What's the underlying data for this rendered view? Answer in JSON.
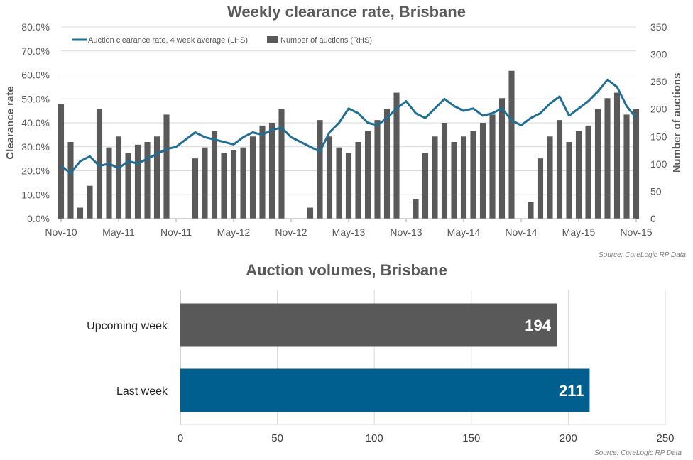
{
  "chart_data": [
    {
      "type": "line",
      "title": "Weekly clearance rate, Brisbane",
      "ylabel_left": "Clearance rate",
      "ylabel_right": "Number of auctions",
      "ylim_left": [
        0,
        80
      ],
      "ylim_right": [
        0,
        350
      ],
      "y_ticks_left": [
        "0.0%",
        "10.0%",
        "20.0%",
        "30.0%",
        "40.0%",
        "50.0%",
        "60.0%",
        "70.0%",
        "80.0%"
      ],
      "y_ticks_right": [
        "0",
        "50",
        "100",
        "150",
        "200",
        "250",
        "300",
        "350"
      ],
      "x_ticks": [
        "Nov-10",
        "May-11",
        "Nov-11",
        "May-12",
        "Nov-12",
        "May-13",
        "Nov-13",
        "May-14",
        "Nov-14",
        "May-15",
        "Nov-15"
      ],
      "grid": true,
      "legend_position": "top-left",
      "legend": [
        "Auction clearance rate, 4 week average (LHS)",
        "Number of auctions (RHS)"
      ],
      "source": "Source: CoreLogic  RP Data",
      "series": [
        {
          "name": "Auction clearance rate, 4 week average (LHS)",
          "axis": "left",
          "color": "#1f6e96",
          "x": [
            "Nov-10",
            "Dec-10",
            "Jan-11",
            "Feb-11",
            "Mar-11",
            "Apr-11",
            "May-11",
            "Jun-11",
            "Jul-11",
            "Aug-11",
            "Sep-11",
            "Oct-11",
            "Nov-11",
            "Dec-11",
            "Jan-12",
            "Feb-12",
            "Mar-12",
            "Apr-12",
            "May-12",
            "Jun-12",
            "Jul-12",
            "Aug-12",
            "Sep-12",
            "Oct-12",
            "Nov-12",
            "Dec-12",
            "Jan-13",
            "Feb-13",
            "Mar-13",
            "Apr-13",
            "May-13",
            "Jun-13",
            "Jul-13",
            "Aug-13",
            "Sep-13",
            "Oct-13",
            "Nov-13",
            "Dec-13",
            "Jan-14",
            "Feb-14",
            "Mar-14",
            "Apr-14",
            "May-14",
            "Jun-14",
            "Jul-14",
            "Aug-14",
            "Sep-14",
            "Oct-14",
            "Nov-14",
            "Dec-14",
            "Jan-15",
            "Feb-15",
            "Mar-15",
            "Apr-15",
            "May-15",
            "Jun-15",
            "Jul-15",
            "Aug-15",
            "Sep-15",
            "Oct-15",
            "Nov-15"
          ],
          "values": [
            22,
            19,
            24,
            26,
            22,
            23,
            21,
            24,
            23,
            25,
            27,
            29,
            30,
            33,
            36,
            34,
            33,
            32,
            31,
            34,
            36,
            35,
            37,
            38,
            34,
            32,
            30,
            28,
            36,
            40,
            46,
            44,
            40,
            39,
            42,
            46,
            49,
            44,
            42,
            46,
            50,
            47,
            45,
            46,
            43,
            44,
            46,
            41,
            39,
            42,
            44,
            48,
            51,
            43,
            46,
            49,
            53,
            58,
            55,
            47,
            42
          ]
        },
        {
          "name": "Number of auctions (RHS)",
          "axis": "right",
          "color": "#595959",
          "x": [
            "Nov-10",
            "Dec-10",
            "Jan-11",
            "Feb-11",
            "Mar-11",
            "Apr-11",
            "May-11",
            "Jun-11",
            "Jul-11",
            "Aug-11",
            "Sep-11",
            "Oct-11",
            "Nov-11",
            "Dec-11",
            "Jan-12",
            "Feb-12",
            "Mar-12",
            "Apr-12",
            "May-12",
            "Jun-12",
            "Jul-12",
            "Aug-12",
            "Sep-12",
            "Oct-12",
            "Nov-12",
            "Dec-12",
            "Jan-13",
            "Feb-13",
            "Mar-13",
            "Apr-13",
            "May-13",
            "Jun-13",
            "Jul-13",
            "Aug-13",
            "Sep-13",
            "Oct-13",
            "Nov-13",
            "Dec-13",
            "Jan-14",
            "Feb-14",
            "Mar-14",
            "Apr-14",
            "May-14",
            "Jun-14",
            "Jul-14",
            "Aug-14",
            "Sep-14",
            "Oct-14",
            "Nov-14",
            "Dec-14",
            "Jan-15",
            "Feb-15",
            "Mar-15",
            "Apr-15",
            "May-15",
            "Jun-15",
            "Jul-15",
            "Aug-15",
            "Sep-15",
            "Oct-15",
            "Nov-15"
          ],
          "values": [
            210,
            140,
            20,
            60,
            200,
            130,
            150,
            120,
            135,
            140,
            150,
            190,
            0,
            0,
            110,
            130,
            160,
            120,
            125,
            130,
            150,
            170,
            175,
            200,
            0,
            0,
            20,
            180,
            150,
            130,
            120,
            140,
            160,
            180,
            200,
            230,
            0,
            35,
            120,
            150,
            175,
            140,
            150,
            160,
            175,
            190,
            220,
            270,
            0,
            30,
            110,
            150,
            180,
            140,
            160,
            170,
            200,
            220,
            230,
            190,
            200
          ]
        }
      ]
    },
    {
      "type": "bar",
      "orientation": "horizontal",
      "title": "Auction volumes, Brisbane",
      "categories": [
        "Upcoming week",
        "Last week"
      ],
      "values": [
        194,
        211
      ],
      "colors": [
        "#595959",
        "#005f8e"
      ],
      "xlim": [
        0,
        250
      ],
      "x_ticks": [
        "0",
        "50",
        "100",
        "150",
        "200",
        "250"
      ],
      "grid": true,
      "source": "Source: CoreLogic  RP Data"
    }
  ]
}
